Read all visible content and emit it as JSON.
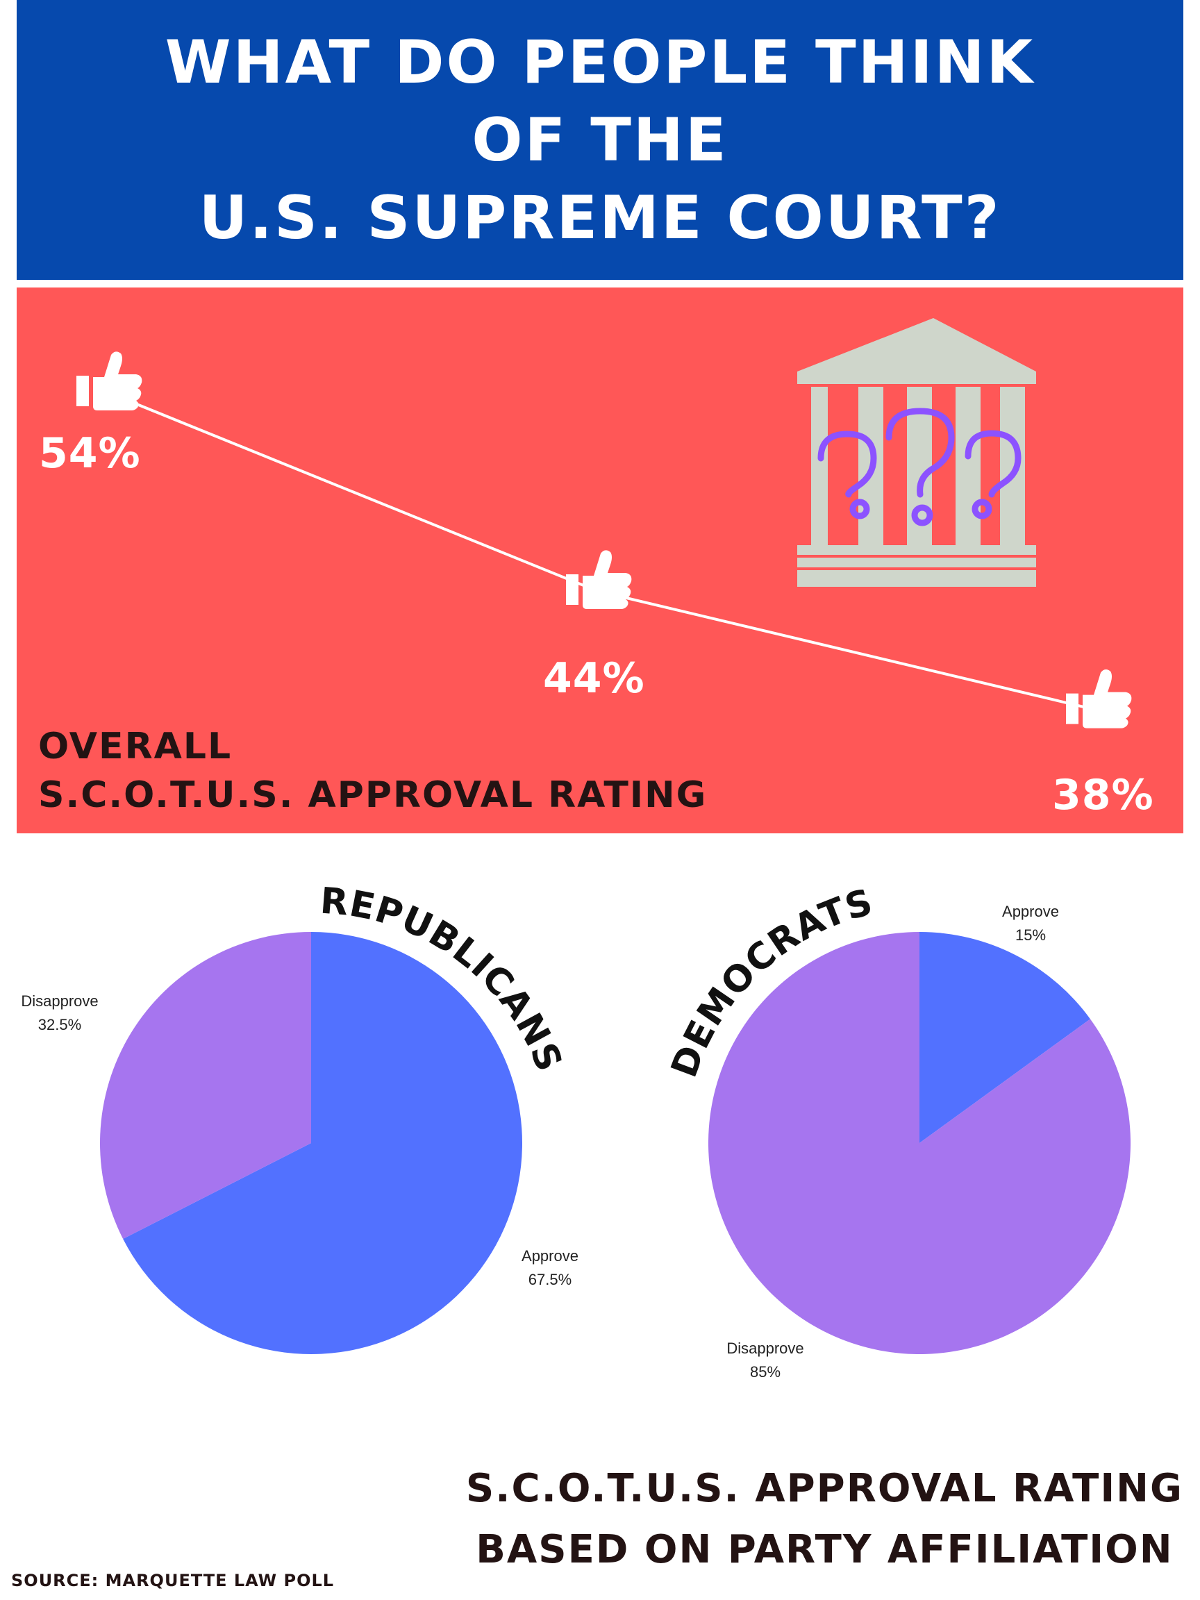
{
  "header": {
    "title_lines": [
      "WHAT DO PEOPLE THINK",
      "OF THE",
      "U.S. SUPREME COURT?"
    ]
  },
  "overall": {
    "title_line1": "OVERALL",
    "title_line2": "S.C.O.T.U.S. APPROVAL RATING"
  },
  "party_section": {
    "title_line1": "S.C.O.T.U.S. APPROVAL RATING",
    "title_line2": "BASED ON PARTY AFFILIATION"
  },
  "source": "SOURCE: MARQUETTE LAW POLL",
  "colors": {
    "title_band": "#0649ad",
    "red_band": "#ff5757",
    "approve": "#5271ff",
    "disapprove": "#a675ef",
    "question_marks": "#8c52ff",
    "building": "#cfd6cb"
  },
  "icons": [
    "thumbs-up-icon",
    "courthouse-icon",
    "question-mark-icon"
  ],
  "chart_data": [
    {
      "type": "line",
      "title": "S.C.O.T.U.S. APPROVAL RATING",
      "points": [
        {
          "label": "54%",
          "value": 54
        },
        {
          "label": "44%",
          "value": 44
        },
        {
          "label": "38%",
          "value": 38
        }
      ]
    },
    {
      "type": "pie",
      "title": "REPUBLICANS",
      "slices": [
        {
          "label": "Approve",
          "value_label": "67.5%",
          "value": 67.5
        },
        {
          "label": "Disapprove",
          "value_label": "32.5%",
          "value": 32.5
        }
      ]
    },
    {
      "type": "pie",
      "title": "DEMOCRATS",
      "slices": [
        {
          "label": "Approve",
          "value_label": "15%",
          "value": 15
        },
        {
          "label": "Disapprove",
          "value_label": "85%",
          "value": 85
        }
      ]
    }
  ]
}
